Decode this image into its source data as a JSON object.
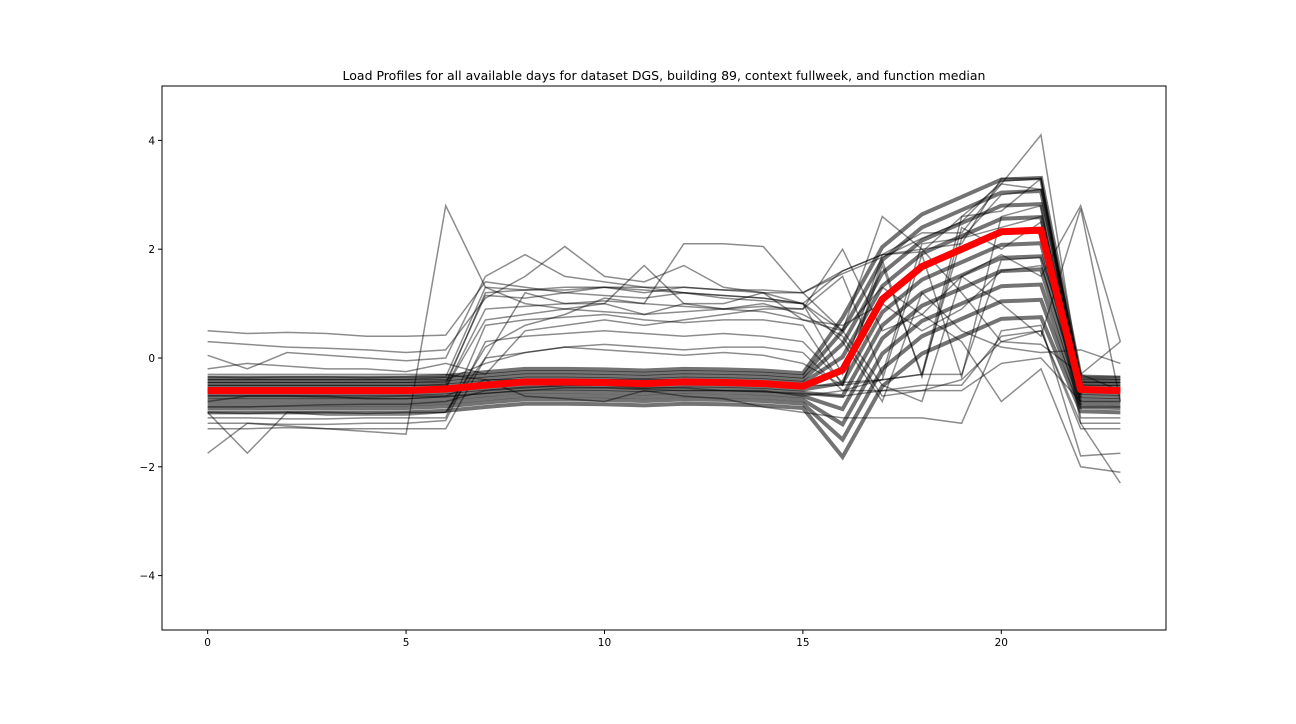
{
  "chart_data": {
    "type": "line",
    "title": "Load Profiles for all available days for dataset DGS, building 89, context fullweek, and function median",
    "xlabel": "",
    "ylabel": "",
    "xlim": [
      -1.15,
      24.15
    ],
    "ylim": [
      -5,
      5
    ],
    "xticks": [
      0,
      5,
      10,
      15,
      20
    ],
    "yticks": [
      -4,
      -2,
      0,
      2,
      4
    ],
    "xtick_labels": [
      "0",
      "5",
      "10",
      "15",
      "20"
    ],
    "ytick_labels": [
      "−4",
      "−2",
      "0",
      "2",
      "4"
    ],
    "grid": false,
    "legend": "none",
    "x": [
      0,
      1,
      2,
      3,
      4,
      5,
      6,
      7,
      8,
      9,
      10,
      11,
      12,
      13,
      14,
      15,
      16,
      17,
      18,
      19,
      20,
      21,
      22,
      23
    ],
    "series": [
      {
        "role": "median",
        "color": "#ff0000",
        "values": [
          -0.6,
          -0.6,
          -0.6,
          -0.6,
          -0.6,
          -0.6,
          -0.57,
          -0.5,
          -0.44,
          -0.44,
          -0.45,
          -0.47,
          -0.44,
          -0.45,
          -0.47,
          -0.52,
          -0.22,
          1.08,
          1.68,
          2.0,
          2.32,
          2.35,
          -0.58,
          -0.6
        ]
      },
      {
        "role": "daily-profiles",
        "color": "#000000",
        "opacity": 0.2,
        "profiles": [
          [
            -0.45,
            -0.45,
            -0.45,
            -0.45,
            -0.45,
            -0.45,
            -0.45,
            1.15,
            1.1,
            1.2,
            1.15,
            1.1,
            1.2,
            1.1,
            1.05,
            1.0,
            1.6,
            1.9,
            1.95,
            2.6,
            3.2,
            4.1,
            -0.45,
            -0.45
          ],
          [
            -0.5,
            -0.5,
            -0.5,
            -0.5,
            -0.5,
            -0.5,
            -0.5,
            1.2,
            1.25,
            1.25,
            1.3,
            1.25,
            1.2,
            1.15,
            1.1,
            1.0,
            -0.3,
            1.9,
            2.0,
            2.1,
            3.3,
            3.3,
            -0.55,
            -0.55
          ],
          [
            -0.55,
            -0.55,
            -0.55,
            -0.55,
            -0.55,
            -0.55,
            -0.55,
            0.9,
            0.95,
            1.0,
            1.05,
            1.0,
            0.95,
            0.9,
            0.95,
            0.9,
            1.5,
            -0.3,
            2.1,
            2.2,
            3.0,
            3.1,
            -0.5,
            -0.5
          ],
          [
            -1.1,
            -1.1,
            -1.12,
            -1.12,
            -1.1,
            -1.1,
            -1.1,
            0.6,
            0.7,
            0.75,
            0.8,
            0.7,
            0.65,
            0.7,
            0.7,
            0.6,
            -0.5,
            1.8,
            -0.35,
            2.4,
            2.0,
            2.5,
            -1.2,
            -1.2
          ],
          [
            -1.2,
            -1.2,
            -1.22,
            -1.22,
            -1.2,
            -1.2,
            -1.15,
            0.3,
            0.4,
            0.45,
            0.5,
            0.45,
            0.4,
            0.45,
            0.4,
            0.3,
            -0.45,
            -0.4,
            1.9,
            -0.35,
            2.6,
            2.8,
            -1.1,
            -1.1
          ],
          [
            -0.4,
            -0.4,
            -0.4,
            -0.4,
            -0.4,
            -0.4,
            -0.4,
            -0.1,
            0.1,
            0.2,
            0.15,
            0.1,
            0.05,
            0.1,
            0.05,
            -0.1,
            -0.5,
            1.7,
            -0.3,
            2.2,
            2.4,
            2.6,
            -0.45,
            -0.45
          ],
          [
            -0.3,
            -0.3,
            -0.3,
            -0.3,
            -0.3,
            -0.3,
            -0.3,
            -0.4,
            -0.4,
            -0.4,
            -0.4,
            -0.4,
            -0.4,
            -0.4,
            -0.45,
            -0.5,
            -0.5,
            -0.4,
            -0.3,
            -0.3,
            1.8,
            1.85,
            -0.35,
            -0.35
          ],
          [
            -0.9,
            -0.9,
            -0.88,
            -0.86,
            -0.85,
            -0.85,
            -0.8,
            -0.6,
            -0.55,
            -0.5,
            -0.5,
            -0.55,
            -0.55,
            -0.6,
            -0.6,
            -0.7,
            -0.6,
            -0.4,
            -0.3,
            2.6,
            2.7,
            3.3,
            -0.9,
            -0.9
          ],
          [
            0.5,
            0.45,
            0.47,
            0.45,
            0.4,
            0.4,
            0.42,
            1.4,
            1.3,
            1.2,
            1.3,
            1.2,
            1.3,
            1.25,
            1.2,
            1.2,
            1.6,
            1.9,
            2.3,
            2.3,
            3.2,
            3.1,
            -0.3,
            0.3
          ],
          [
            0.05,
            -0.2,
            0.1,
            0.05,
            0.0,
            -0.05,
            0.0,
            1.5,
            1.9,
            1.5,
            1.4,
            1.3,
            1.2,
            1.15,
            1.1,
            1.0,
            0.3,
            -0.8,
            1.2,
            0.5,
            0.2,
            0.1,
            0.15,
            -0.1
          ],
          [
            -1.75,
            -1.2,
            -1.25,
            -1.3,
            -1.35,
            -1.4,
            2.8,
            1.3,
            1.0,
            0.9,
            1.0,
            0.8,
            1.0,
            0.9,
            1.0,
            0.8,
            0.4,
            -0.7,
            -0.6,
            -0.4,
            0.3,
            0.5,
            -1.2,
            -2.3
          ],
          [
            0.3,
            0.25,
            0.2,
            0.18,
            0.15,
            0.1,
            0.15,
            1.1,
            1.5,
            2.05,
            1.5,
            1.4,
            1.7,
            1.3,
            1.2,
            1.0,
            0.5,
            2.6,
            2.0,
            1.2,
            0.3,
            0.25,
            -0.3,
            -0.6
          ],
          [
            -1.3,
            -1.3,
            -1.28,
            -1.3,
            -1.3,
            -1.3,
            -1.3,
            0.0,
            1.2,
            1.0,
            1.0,
            1.7,
            1.0,
            1.0,
            1.2,
            0.7,
            0.5,
            1.3,
            0.8,
            1.5,
            1.9,
            1.5,
            2.8,
            0.3
          ],
          [
            -1.0,
            -1.75,
            -1.0,
            -1.05,
            -1.05,
            -1.05,
            -1.0,
            0.2,
            0.6,
            0.8,
            1.1,
            1.0,
            2.1,
            2.1,
            2.05,
            1.2,
            0.5,
            -0.5,
            -0.8,
            1.5,
            1.0,
            0.4,
            2.75,
            -0.8
          ],
          [
            -0.2,
            -0.1,
            -0.15,
            -0.2,
            -0.2,
            -0.25,
            -0.1,
            -0.3,
            0.5,
            0.6,
            0.7,
            0.6,
            0.7,
            0.8,
            0.9,
            0.9,
            2.0,
            0.5,
            0.8,
            0.3,
            -0.8,
            -0.2,
            -2.0,
            -2.1
          ],
          [
            -0.8,
            -0.7,
            -0.7,
            -0.7,
            -0.75,
            -0.75,
            -0.7,
            -0.4,
            -0.7,
            -0.75,
            -0.8,
            -0.6,
            -0.7,
            -0.75,
            -0.9,
            -1.0,
            -1.1,
            -1.1,
            -1.1,
            -1.2,
            0.5,
            0.6,
            -1.8,
            -1.75
          ],
          [
            -0.6,
            -0.6,
            -0.58,
            -0.6,
            -0.6,
            -0.6,
            -0.55,
            0.7,
            0.8,
            0.9,
            0.85,
            0.8,
            0.85,
            0.9,
            0.85,
            0.7,
            0.6,
            1.0,
            0.5,
            0.9,
            1.6,
            1.7,
            -0.6,
            -0.6
          ],
          [
            -0.7,
            -0.7,
            -0.7,
            -0.72,
            -0.72,
            -0.7,
            -0.7,
            -0.65,
            -0.6,
            -0.55,
            -0.55,
            -0.58,
            -0.6,
            -0.6,
            -0.62,
            -0.65,
            -0.7,
            -0.6,
            -0.6,
            -0.6,
            -0.1,
            0.0,
            -0.8,
            -0.8
          ],
          [
            -0.35,
            -0.36,
            -0.35,
            -0.35,
            -0.36,
            -0.35,
            -0.35,
            1.3,
            1.25,
            1.3,
            1.3,
            1.3,
            1.3,
            1.25,
            1.25,
            1.2,
            1.55,
            1.85,
            2.2,
            2.5,
            3.25,
            3.3,
            -0.4,
            -0.4
          ],
          [
            -1.0,
            -1.02,
            -1.0,
            -1.0,
            -1.02,
            -1.0,
            -1.0,
            0.0,
            0.1,
            0.2,
            0.25,
            0.2,
            0.15,
            0.2,
            0.2,
            0.1,
            -0.6,
            -0.6,
            -0.5,
            -0.5,
            0.4,
            0.5,
            -1.3,
            -1.3
          ]
        ]
      }
    ]
  }
}
